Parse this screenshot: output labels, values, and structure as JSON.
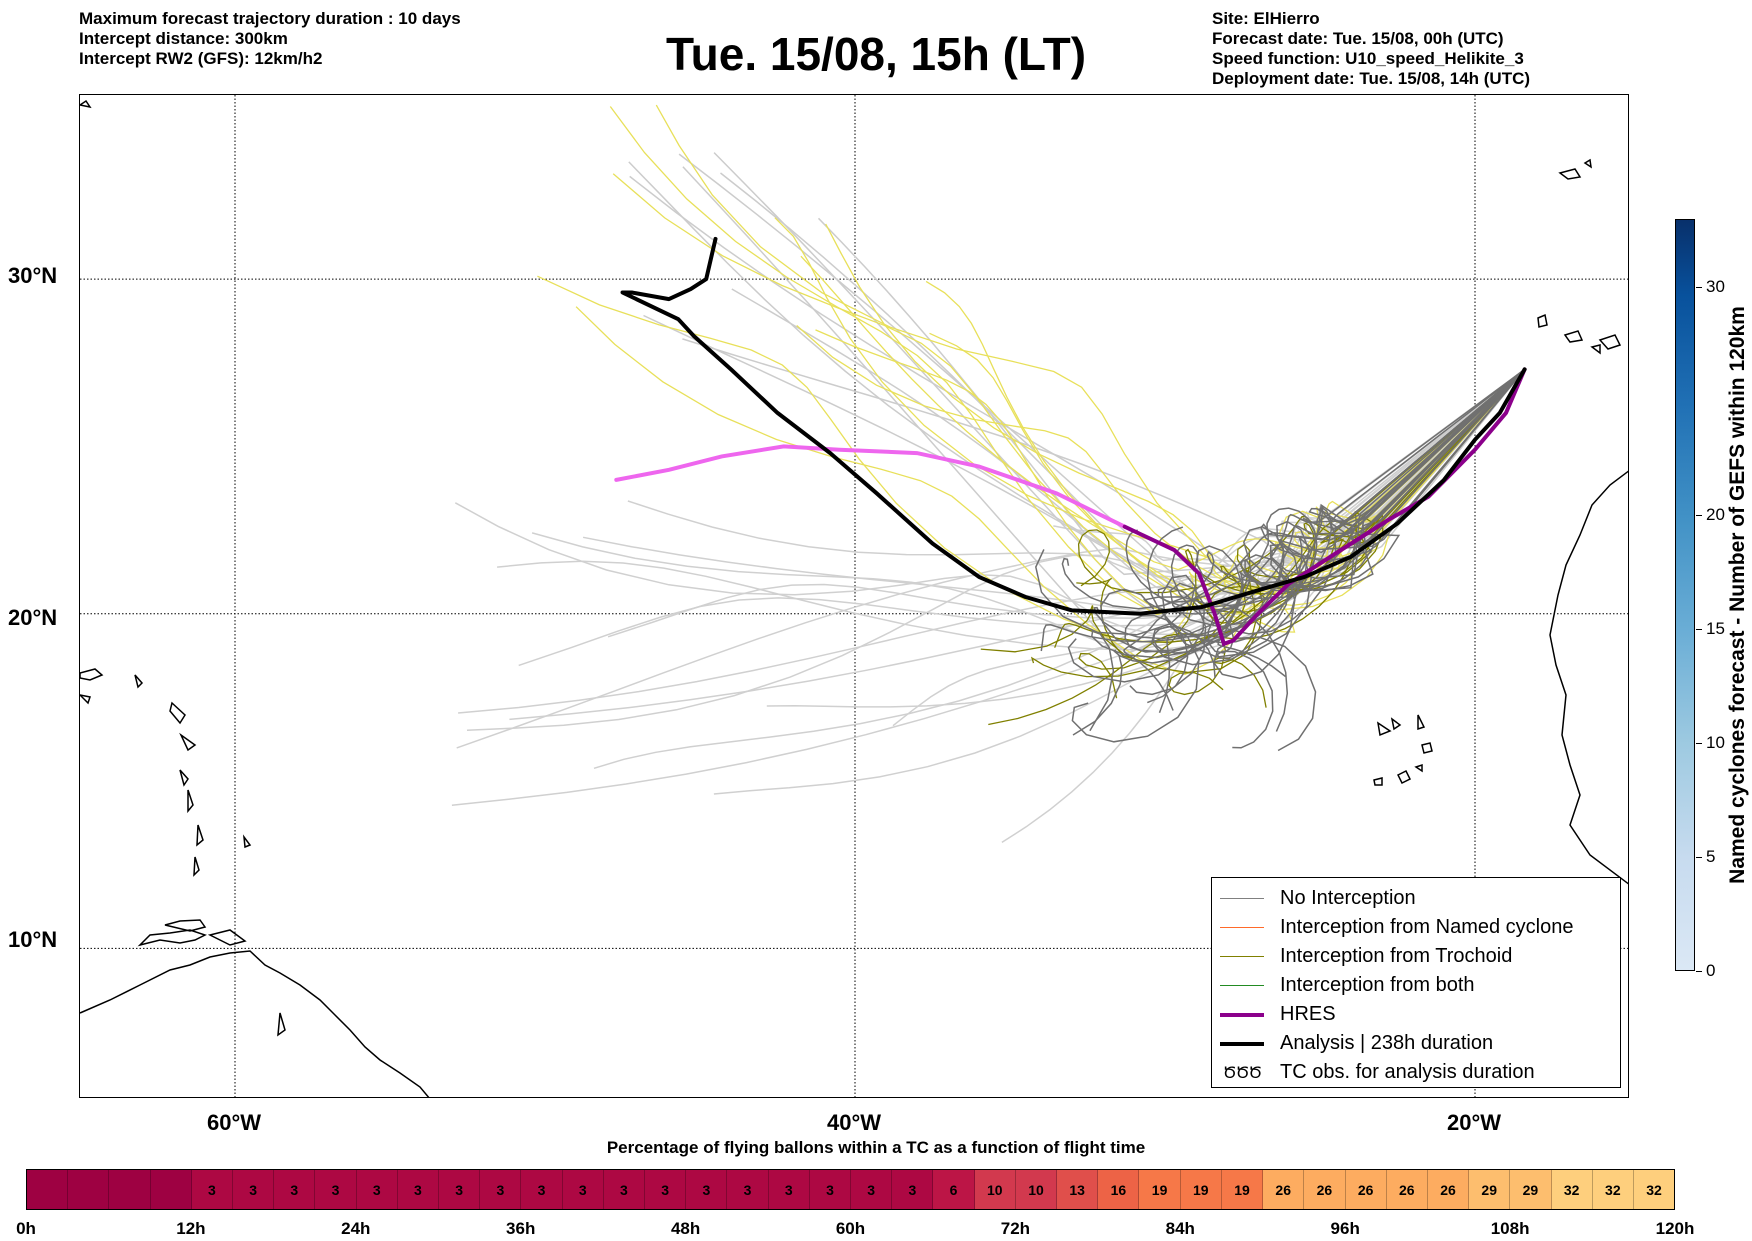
{
  "header": {
    "left_lines": [
      "Maximum forecast trajectory duration : 10 days",
      "Intercept distance: 300km",
      "Intercept RW2 (GFS):  12km/h2"
    ],
    "title": "Tue. 15/08, 15h (LT)",
    "right_lines": [
      "Site: ElHierro",
      "Forecast date: Tue. 15/08, 00h (UTC)",
      "Speed function: U10_speed_Helikite_3",
      "Deployment date: Tue. 15/08, 14h (UTC)"
    ]
  },
  "map": {
    "lon_range": [
      -65,
      -15
    ],
    "lat_range": [
      5.5,
      35.5
    ],
    "lat_labels": [
      "30°N",
      "20°N",
      "10°N"
    ],
    "lon_labels": [
      "60°W",
      "40°W",
      "20°W"
    ],
    "grid": "dotted",
    "analysis_path": [
      [
        -44.5,
        31.2
      ],
      [
        -44.8,
        30.0
      ],
      [
        -45.3,
        29.7
      ],
      [
        -46.0,
        29.4
      ],
      [
        -47.2,
        29.6
      ],
      [
        -47.5,
        29.6
      ],
      [
        -45.7,
        28.8
      ],
      [
        -45.2,
        28.3
      ],
      [
        -44.0,
        27.3
      ],
      [
        -42.5,
        26.0
      ],
      [
        -40.8,
        24.8
      ],
      [
        -39.3,
        23.6
      ],
      [
        -37.5,
        22.1
      ],
      [
        -36.0,
        21.1
      ],
      [
        -34.5,
        20.5
      ],
      [
        -33.0,
        20.1
      ],
      [
        -30.8,
        20.0
      ],
      [
        -28.8,
        20.2
      ],
      [
        -27.0,
        20.7
      ],
      [
        -25.5,
        21.1
      ],
      [
        -24.0,
        21.7
      ],
      [
        -22.5,
        22.7
      ],
      [
        -21.0,
        24.0
      ],
      [
        -20.0,
        25.2
      ],
      [
        -19.2,
        26.0
      ],
      [
        -18.4,
        27.3
      ]
    ],
    "hres_path": [
      [
        -18.4,
        27.3
      ],
      [
        -19.0,
        26.0
      ],
      [
        -20.0,
        24.9
      ],
      [
        -21.5,
        23.5
      ],
      [
        -22.8,
        22.8
      ],
      [
        -24.5,
        21.8
      ],
      [
        -26.0,
        20.9
      ],
      [
        -27.0,
        20.0
      ],
      [
        -27.8,
        19.2
      ],
      [
        -28.1,
        19.1
      ],
      [
        -28.4,
        20.0
      ],
      [
        -28.9,
        21.2
      ],
      [
        -29.7,
        21.9
      ],
      [
        -31.3,
        22.6
      ],
      [
        -33.5,
        23.6
      ],
      [
        -36.0,
        24.4
      ],
      [
        -38.0,
        24.8
      ],
      [
        -40.5,
        24.9
      ],
      [
        -42.3,
        25.0
      ],
      [
        -44.3,
        24.7
      ],
      [
        -46.0,
        24.3
      ],
      [
        -47.7,
        24.0
      ]
    ],
    "interactive_colors": {
      "hres_near": "#8b008b",
      "hres_far": "#ee66ee",
      "analysis": "#000000"
    }
  },
  "legend": {
    "items": [
      {
        "label": "No Interception",
        "color": "#808080",
        "kind": "line"
      },
      {
        "label": "Interception from Named cyclone",
        "color": "#ff6a2a",
        "kind": "line"
      },
      {
        "label": "Interception from Trochoid",
        "color": "#808000",
        "kind": "line"
      },
      {
        "label": "Interception from both",
        "color": "#228b22",
        "kind": "line"
      },
      {
        "label": "HRES",
        "color": "#8b008b",
        "kind": "thick"
      },
      {
        "label": "Analysis | 238h duration",
        "color": "#000000",
        "kind": "thick"
      },
      {
        "label": "TC obs. for analysis duration",
        "glyph": "ԾԾԾ",
        "kind": "glyph"
      }
    ]
  },
  "colorbar": {
    "title": "Named cyclones forecast - Number of GEFS within 120km",
    "range": [
      0,
      33
    ],
    "ticks": [
      "0",
      "5",
      "10",
      "15",
      "20",
      "30"
    ],
    "tick_values": [
      0,
      5,
      10,
      15,
      20,
      30
    ]
  },
  "chart_data": {
    "type": "bar",
    "title": "Percentage of flying ballons within a TC as a function of flight time",
    "x_range_hours": [
      0,
      120
    ],
    "x_tick_labels": [
      "0h",
      "12h",
      "24h",
      "36h",
      "48h",
      "60h",
      "72h",
      "84h",
      "96h",
      "108h",
      "120h"
    ],
    "values": [
      null,
      null,
      null,
      null,
      3,
      3,
      3,
      3,
      3,
      3,
      3,
      3,
      3,
      3,
      3,
      3,
      3,
      3,
      3,
      3,
      3,
      3,
      6,
      10,
      10,
      13,
      16,
      19,
      19,
      19,
      26,
      26,
      26,
      26,
      26,
      29,
      29,
      32,
      32,
      32
    ],
    "colormap_range": [
      0,
      35
    ]
  }
}
